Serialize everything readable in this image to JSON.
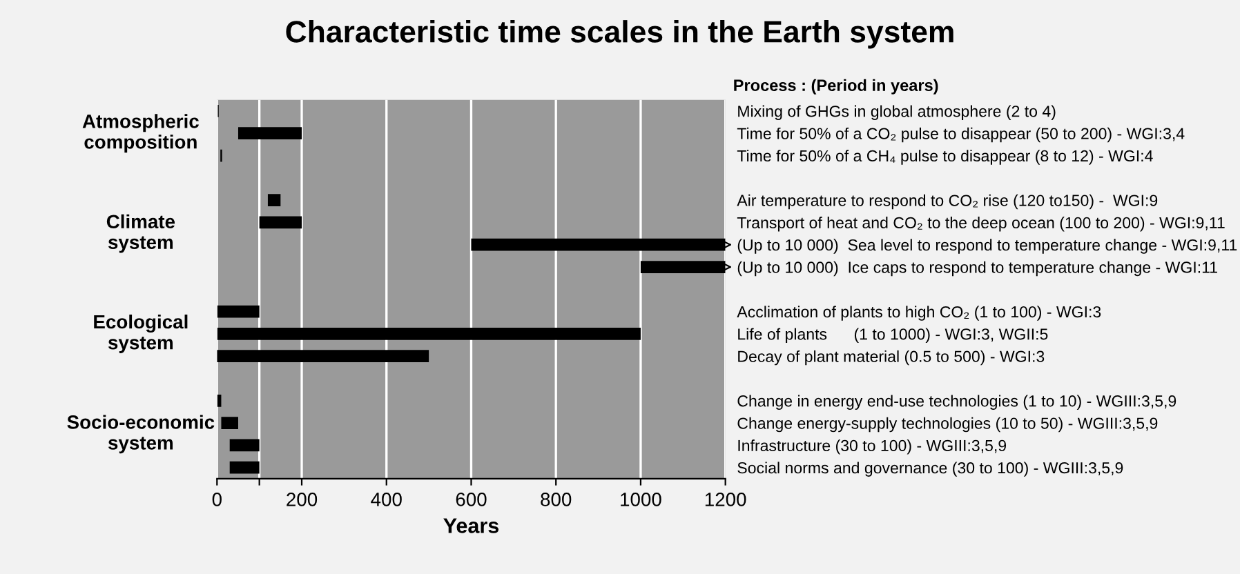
{
  "chart_data": {
    "type": "bar",
    "orientation": "horizontal",
    "title": "Characteristic time scales in the Earth system",
    "xlabel": "Years",
    "categories": [
      "Mixing of GHGs in global atmosphere (2 to 4)",
      "Time for 50% of a CO₂ pulse to disappear (50 to 200) - WGI:3,4",
      "Time for 50% of a CH₄ pulse to disappear (8 to 12) - WGI:4",
      null,
      "Air temperature to respond to CO₂ rise (120 to150) -  WGI:9",
      "Transport of heat and CO₂ to the deep ocean (100 to 200) - WGI:9,11",
      "(Up to 10 000)  Sea level to respond to temperature change - WGI:9,11",
      "(Up to 10 000)  Ice caps to respond to temperature change - WGI:11",
      null,
      "Acclimation of plants to high CO₂ (1 to 100) - WGI:3",
      "Life of plants      (1 to 1000) - WGI:3, WGII:5",
      "Decay of plant material (0.5 to 500) - WGI:3",
      null,
      "Change in energy end-use technologies (1 to 10) - WGIII:3,5,9",
      "Change energy-supply technologies (10 to 50) - WGIII:3,5,9",
      "Infrastructure (30 to 100) - WGIII:3,5,9",
      "Social norms and governance (30 to 100) - WGIII:3,5,9"
    ],
    "base": [
      2,
      50,
      8,
      null,
      120,
      100,
      600,
      1000,
      null,
      1,
      1,
      0,
      null,
      1,
      10,
      30,
      30
    ],
    "values": [
      2,
      150,
      4,
      null,
      30,
      100,
      600,
      200,
      null,
      99,
      999,
      500,
      null,
      9,
      40,
      70,
      70
    ],
    "color": "#000000",
    "xlim": [
      0,
      1200
    ],
    "xticks": [
      0,
      {
        "value": 100,
        "label": null
      },
      200,
      400,
      600,
      800,
      1000,
      1200
    ],
    "grid": "x",
    "annotations": [
      "Atmospheric\ncomposition",
      "Climate\nsystem",
      "Ecological\nsystem",
      "Socio-economic\nsystem",
      "Process : (Period in years)"
    ]
  }
}
